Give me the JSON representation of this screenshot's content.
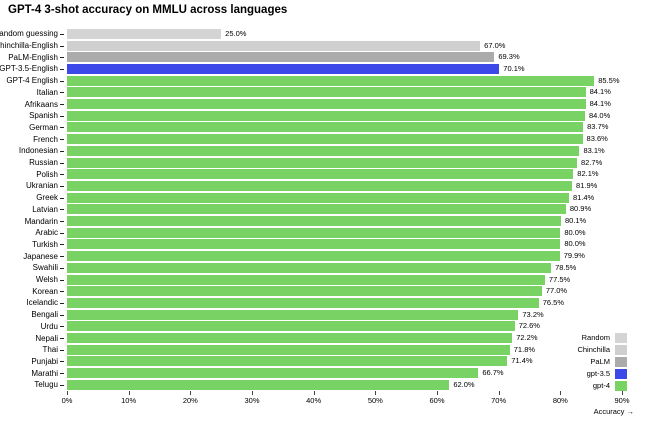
{
  "title": "GPT-4 3-shot accuracy on MMLU across languages",
  "chart_data": {
    "type": "bar",
    "orientation": "horizontal",
    "title": "GPT-4 3-shot accuracy on MMLU across languages",
    "xlabel": "Accuracy →",
    "ylabel": "",
    "xlim": [
      0,
      90
    ],
    "grid": false,
    "legend_position": "bottom-right",
    "x_ticks": [
      "0%",
      "10%",
      "20%",
      "30%",
      "40%",
      "50%",
      "60%",
      "70%",
      "80%",
      "90%"
    ],
    "series_colors": {
      "Random": "#d4d4d4",
      "Chinchilla": "#cfcfcf",
      "PaLM": "#ababab",
      "gpt-3.5": "#3c49e8",
      "gpt-4": "#78d364"
    },
    "legend": [
      {
        "label": "Random",
        "series": "Random"
      },
      {
        "label": "Chinchilla",
        "series": "Chinchilla"
      },
      {
        "label": "PaLM",
        "series": "PaLM"
      },
      {
        "label": "gpt-3.5",
        "series": "gpt-3.5"
      },
      {
        "label": "gpt-4",
        "series": "gpt-4"
      }
    ],
    "bars": [
      {
        "label": "Random guessing",
        "value": 25.0,
        "display": "25.0%",
        "series": "Random"
      },
      {
        "label": "Chinchilla-English",
        "value": 67.0,
        "display": "67.0%",
        "series": "Chinchilla"
      },
      {
        "label": "PaLM-English",
        "value": 69.3,
        "display": "69.3%",
        "series": "PaLM"
      },
      {
        "label": "GPT-3.5-English",
        "value": 70.1,
        "display": "70.1%",
        "series": "gpt-3.5"
      },
      {
        "label": "GPT-4 English",
        "value": 85.5,
        "display": "85.5%",
        "series": "gpt-4"
      },
      {
        "label": "Italian",
        "value": 84.1,
        "display": "84.1%",
        "series": "gpt-4"
      },
      {
        "label": "Afrikaans",
        "value": 84.1,
        "display": "84.1%",
        "series": "gpt-4"
      },
      {
        "label": "Spanish",
        "value": 84.0,
        "display": "84.0%",
        "series": "gpt-4"
      },
      {
        "label": "German",
        "value": 83.7,
        "display": "83.7%",
        "series": "gpt-4"
      },
      {
        "label": "French",
        "value": 83.6,
        "display": "83.6%",
        "series": "gpt-4"
      },
      {
        "label": "Indonesian",
        "value": 83.1,
        "display": "83.1%",
        "series": "gpt-4"
      },
      {
        "label": "Russian",
        "value": 82.7,
        "display": "82.7%",
        "series": "gpt-4"
      },
      {
        "label": "Polish",
        "value": 82.1,
        "display": "82.1%",
        "series": "gpt-4"
      },
      {
        "label": "Ukranian",
        "value": 81.9,
        "display": "81.9%",
        "series": "gpt-4"
      },
      {
        "label": "Greek",
        "value": 81.4,
        "display": "81.4%",
        "series": "gpt-4"
      },
      {
        "label": "Latvian",
        "value": 80.9,
        "display": "80.9%",
        "series": "gpt-4"
      },
      {
        "label": "Mandarin",
        "value": 80.1,
        "display": "80.1%",
        "series": "gpt-4"
      },
      {
        "label": "Arabic",
        "value": 80.0,
        "display": "80.0%",
        "series": "gpt-4"
      },
      {
        "label": "Turkish",
        "value": 80.0,
        "display": "80.0%",
        "series": "gpt-4"
      },
      {
        "label": "Japanese",
        "value": 79.9,
        "display": "79.9%",
        "series": "gpt-4"
      },
      {
        "label": "Swahili",
        "value": 78.5,
        "display": "78.5%",
        "series": "gpt-4"
      },
      {
        "label": "Welsh",
        "value": 77.5,
        "display": "77.5%",
        "series": "gpt-4"
      },
      {
        "label": "Korean",
        "value": 77.0,
        "display": "77.0%",
        "series": "gpt-4"
      },
      {
        "label": "Icelandic",
        "value": 76.5,
        "display": "76.5%",
        "series": "gpt-4"
      },
      {
        "label": "Bengali",
        "value": 73.2,
        "display": "73.2%",
        "series": "gpt-4"
      },
      {
        "label": "Urdu",
        "value": 72.6,
        "display": "72.6%",
        "series": "gpt-4"
      },
      {
        "label": "Nepali",
        "value": 72.2,
        "display": "72.2%",
        "series": "gpt-4"
      },
      {
        "label": "Thai",
        "value": 71.8,
        "display": "71.8%",
        "series": "gpt-4"
      },
      {
        "label": "Punjabi",
        "value": 71.4,
        "display": "71.4%",
        "series": "gpt-4"
      },
      {
        "label": "Marathi",
        "value": 66.7,
        "display": "66.7%",
        "series": "gpt-4"
      },
      {
        "label": "Telugu",
        "value": 62.0,
        "display": "62.0%",
        "series": "gpt-4"
      }
    ]
  }
}
